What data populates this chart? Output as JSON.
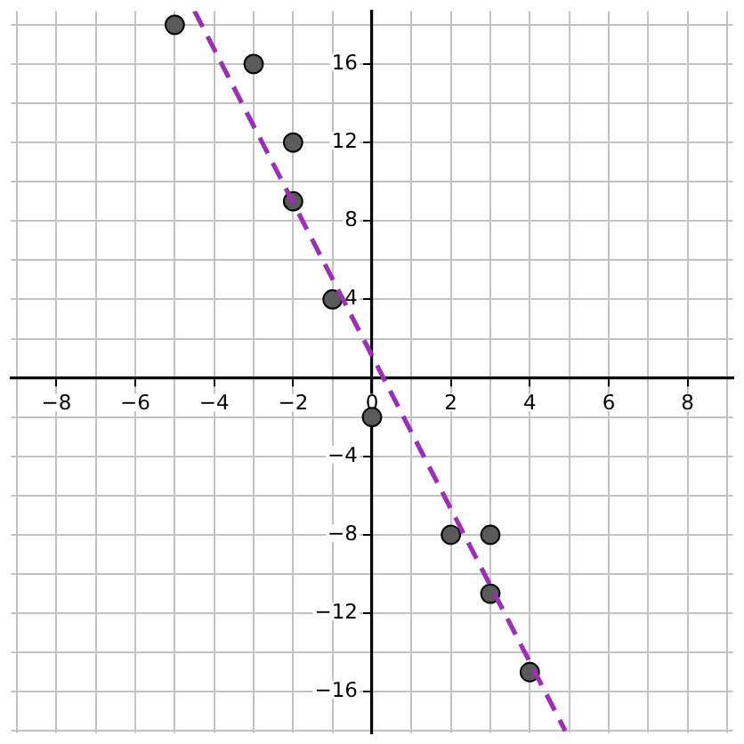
{
  "chart_data": {
    "type": "scatter",
    "x": [
      -5,
      -3,
      -2,
      -2,
      -1,
      0,
      2,
      3,
      3,
      4
    ],
    "xlim": [
      -9.15,
      9.15
    ],
    "ylim": [
      -18.1,
      18.7
    ],
    "xticks": [
      {
        "value": -9,
        "label": null
      },
      {
        "value": -8,
        "label": "−8"
      },
      {
        "value": -7,
        "label": null
      },
      {
        "value": -6,
        "label": "−6"
      },
      {
        "value": -5,
        "label": null
      },
      {
        "value": -4,
        "label": "−4"
      },
      {
        "value": -3,
        "label": null
      },
      {
        "value": -2,
        "label": "−2"
      },
      {
        "value": -1,
        "label": null
      },
      0,
      {
        "value": 1,
        "label": null
      },
      2,
      {
        "value": 3,
        "label": null
      },
      4,
      {
        "value": 5,
        "label": null
      },
      6,
      {
        "value": 7,
        "label": null
      },
      8,
      {
        "value": 9,
        "label": null
      }
    ],
    "yticks": [
      {
        "value": -18,
        "label": null
      },
      {
        "value": -16,
        "label": "−16"
      },
      {
        "value": -14,
        "label": null
      },
      {
        "value": -12,
        "label": "−12"
      },
      {
        "value": -10,
        "label": null
      },
      {
        "value": -8,
        "label": "−8"
      },
      {
        "value": -6,
        "label": null
      },
      {
        "value": -4,
        "label": "−4"
      },
      {
        "value": -2,
        "label": null
      },
      {
        "value": 0,
        "label": null
      },
      {
        "value": 2,
        "label": null
      },
      4,
      {
        "value": 6,
        "label": null
      },
      8,
      {
        "value": 10,
        "label": null
      },
      12,
      {
        "value": 14,
        "label": null
      },
      16,
      {
        "value": 18,
        "label": null
      }
    ],
    "grid": true,
    "marker": "circle",
    "series": [
      {
        "color": "#5a5a5a",
        "values": [
          18,
          16,
          12,
          9,
          4,
          -2,
          -8,
          -8,
          -11,
          -15
        ]
      },
      {
        "type": "line",
        "color": "#9b2fb5",
        "x": [
          -4.5,
          4.9
        ],
        "values": [
          18.7,
          -18.0
        ],
        "line_style": "dashed",
        "marker": "none"
      }
    ]
  }
}
